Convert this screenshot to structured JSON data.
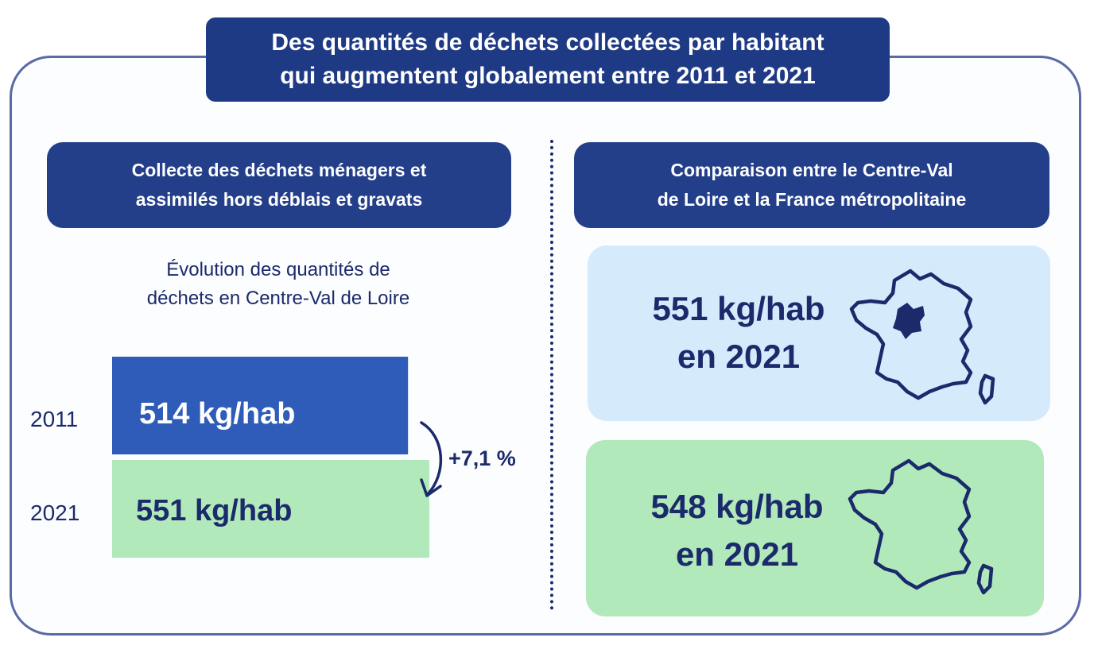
{
  "header": {
    "title_line1": "Des quantités de déchets collectées par habitant",
    "title_line2": "qui augmentent globalement entre 2011 et 2021"
  },
  "left_section": {
    "title_line1": "Collecte des déchets ménagers et",
    "title_line2": "assimilés hors déblais et gravats",
    "subtitle_line1": "Évolution des quantités de",
    "subtitle_line2": "déchets en Centre-Val de Loire"
  },
  "right_section": {
    "title_line1": "Comparaison entre le Centre-Val",
    "title_line2": "de Loire et la France métropolitaine",
    "regional": {
      "value_text": "551 kg/hab",
      "year_text": "en 2021"
    },
    "national": {
      "value_text": "548 kg/hab",
      "year_text": "en 2021"
    }
  },
  "colors": {
    "navy": "#1f3a85",
    "bar_2011": "#2e5cb8",
    "bar_2021": "#b2e9ba",
    "card_blue": "#d5eafb",
    "card_green": "#b2e9ba",
    "text_dark": "#1b2a6b"
  },
  "icons": [
    "curved-arrow-icon",
    "france-map-icon"
  ],
  "chart_data": {
    "type": "bar",
    "orientation": "horizontal",
    "title": "Évolution des quantités de déchets en Centre-Val de Loire",
    "categories": [
      "2011",
      "2021"
    ],
    "values": [
      514,
      551
    ],
    "value_labels": [
      "514 kg/hab",
      "551 kg/hab"
    ],
    "unit": "kg/hab",
    "change_label": "+7,1 %",
    "xlim": [
      0,
      580
    ],
    "grid": false,
    "legend": "none"
  }
}
